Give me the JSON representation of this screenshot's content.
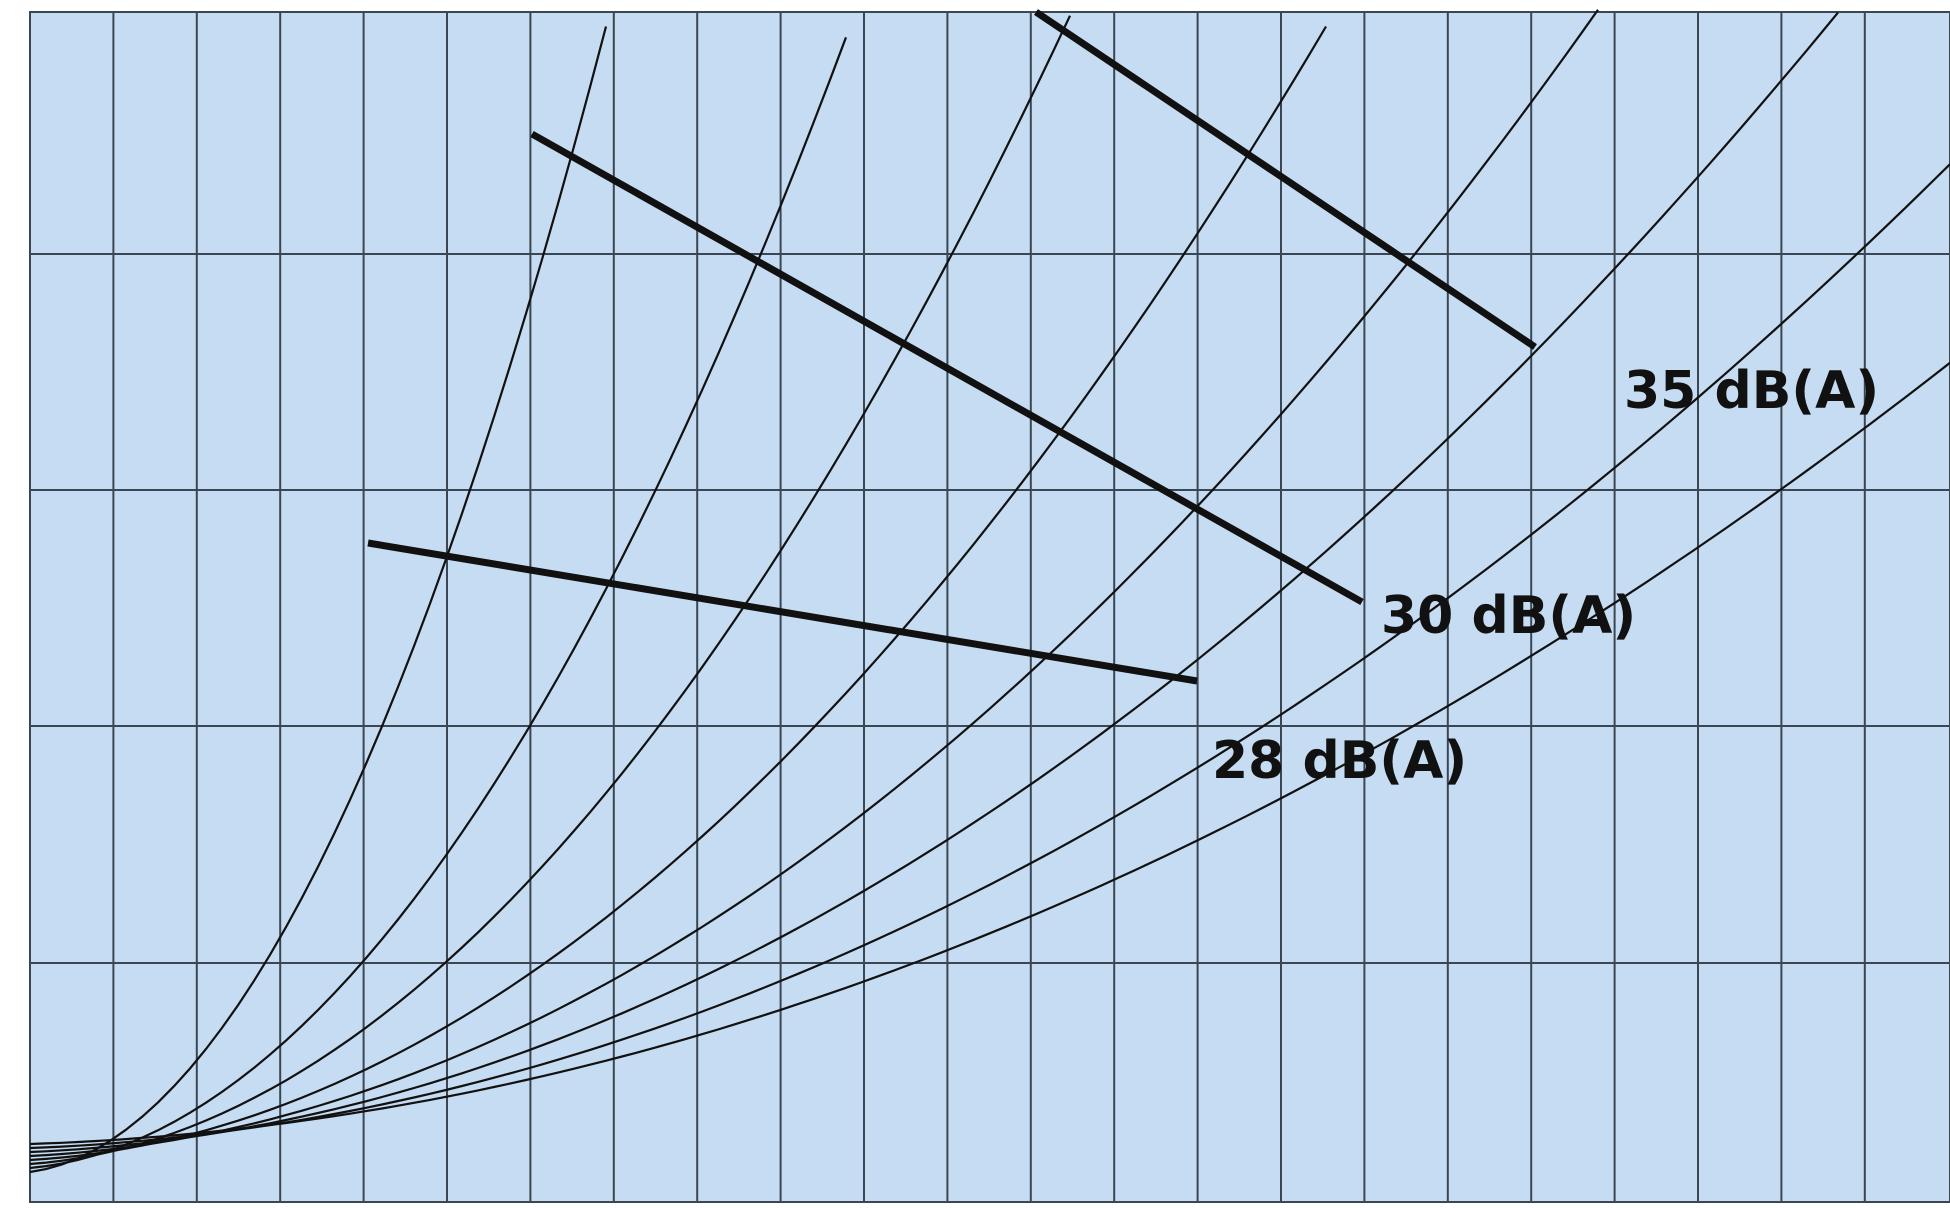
{
  "chart_data": {
    "type": "line",
    "title": "",
    "xlabel": "",
    "ylabel": "",
    "grid": true,
    "colors": {
      "background": "#c6dcf2",
      "grid": "#3a4652",
      "curve": "#111111"
    },
    "system_curves": [
      {
        "knee": 61,
        "values": [
          0.2,
          0.39,
          0.64,
          0.95
        ]
      },
      {
        "knee": 87,
        "values": [
          0.12,
          0.25,
          0.43,
          0.68,
          0.98
        ]
      },
      {
        "knee": 110,
        "values": [
          0.09,
          0.2,
          0.35,
          0.54,
          0.77
        ]
      },
      {
        "knee": 138,
        "values": [
          0.065,
          0.15,
          0.27,
          0.42,
          0.6,
          0.82
        ]
      },
      {
        "knee": 166,
        "values": [
          0.05,
          0.11,
          0.2,
          0.32,
          0.46,
          0.63,
          0.83
        ]
      },
      {
        "knee": 192,
        "values": [
          0.04,
          0.09,
          0.16,
          0.25,
          0.37,
          0.51,
          0.67,
          0.86
        ]
      },
      {
        "knee": 220,
        "values": [
          0.035,
          0.075,
          0.13,
          0.21,
          0.31,
          0.43,
          0.56,
          0.71,
          0.88
        ]
      },
      {
        "knee": 248,
        "values": [
          0.028,
          0.06,
          0.1,
          0.16,
          0.24,
          0.34,
          0.45,
          0.58,
          0.72,
          0.88
        ]
      }
    ],
    "noise_lines": [
      {
        "name": "28 dB(A)",
        "points": [
          [
            0.42,
            0.56
          ],
          [
            0.57,
            0.51
          ],
          [
            0.7,
            0.47
          ],
          [
            0.82,
            0.44
          ],
          [
            0.93,
            0.42
          ]
        ]
      },
      {
        "name": "30 dB(A)",
        "points": [
          [
            0.62,
            0.9
          ],
          [
            0.78,
            0.78
          ],
          [
            0.93,
            0.66
          ],
          [
            1.07,
            0.55
          ],
          [
            1.2,
            0.44
          ]
        ]
      },
      {
        "name": "35 dB(A)",
        "points": [
          [
            0.9,
            1.0
          ],
          [
            1.05,
            0.92
          ],
          [
            1.18,
            0.84
          ],
          [
            1.31,
            0.75
          ]
        ]
      }
    ]
  }
}
